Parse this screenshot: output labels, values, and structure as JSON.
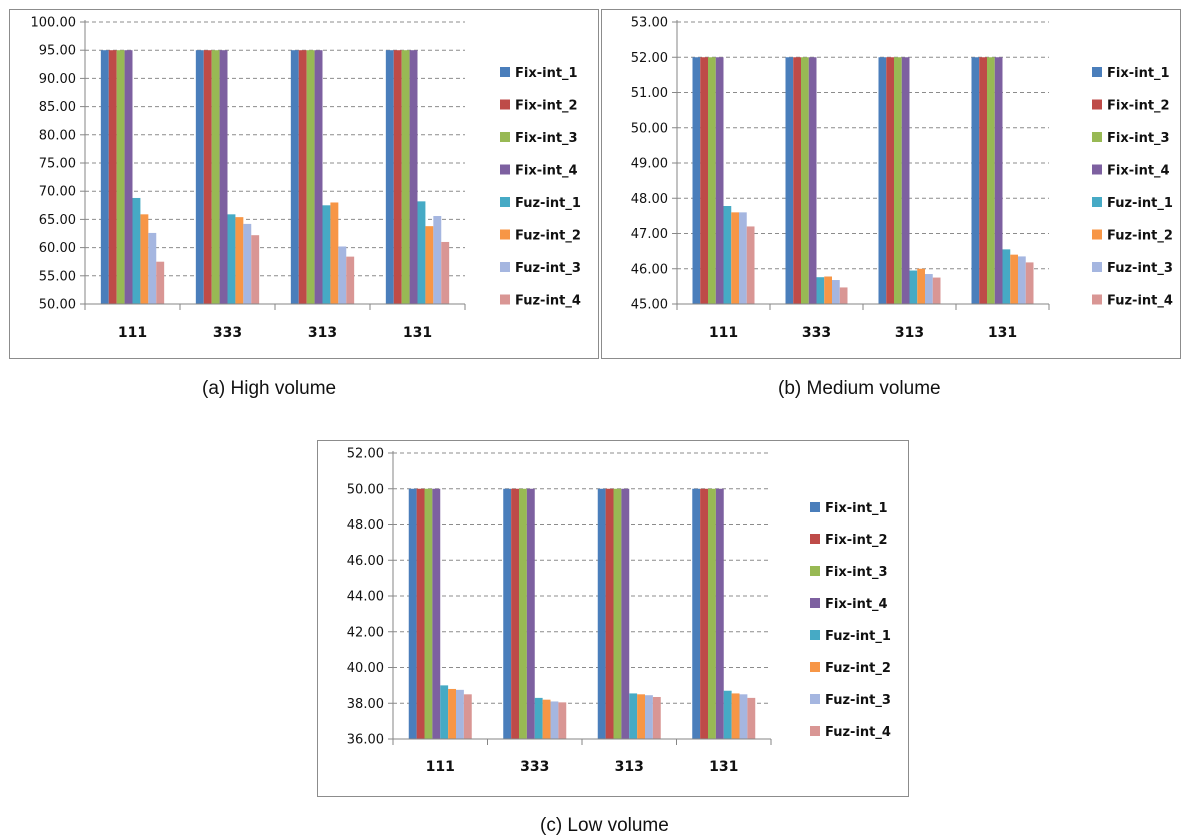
{
  "chart_data": [
    {
      "type": "bar",
      "caption": "(a) High volume",
      "categories": [
        "111",
        "333",
        "313",
        "131"
      ],
      "ylim": [
        50,
        100
      ],
      "yticks": [
        "50.00",
        "55.00",
        "60.00",
        "65.00",
        "70.00",
        "75.00",
        "80.00",
        "85.00",
        "90.00",
        "95.00",
        "100.00"
      ],
      "grid": true,
      "legend_position": "right",
      "series": [
        {
          "name": "Fix-int_1",
          "color": "#4a7ebb",
          "values": [
            95,
            95,
            95,
            95
          ]
        },
        {
          "name": "Fix-int_2",
          "color": "#be4b48",
          "values": [
            95,
            95,
            95,
            95
          ]
        },
        {
          "name": "Fix-int_3",
          "color": "#98b954",
          "values": [
            95,
            95,
            95,
            95
          ]
        },
        {
          "name": "Fix-int_4",
          "color": "#7d60a0",
          "values": [
            95,
            95,
            95,
            95
          ]
        },
        {
          "name": "Fuz-int_1",
          "color": "#46aac5",
          "values": [
            68.8,
            65.9,
            67.5,
            68.2
          ]
        },
        {
          "name": "Fuz-int_2",
          "color": "#f79646",
          "values": [
            65.9,
            65.4,
            68.0,
            63.8
          ]
        },
        {
          "name": "Fuz-int_3",
          "color": "#a5b6e0",
          "values": [
            62.6,
            64.2,
            60.2,
            65.6
          ]
        },
        {
          "name": "Fuz-int_4",
          "color": "#d99694",
          "values": [
            57.5,
            62.2,
            58.4,
            61.0
          ]
        }
      ]
    },
    {
      "type": "bar",
      "caption": "(b) Medium volume",
      "categories": [
        "111",
        "333",
        "313",
        "131"
      ],
      "ylim": [
        45,
        53
      ],
      "yticks": [
        "45.00",
        "46.00",
        "47.00",
        "48.00",
        "49.00",
        "50.00",
        "51.00",
        "52.00",
        "53.00"
      ],
      "grid": true,
      "legend_position": "right",
      "series": [
        {
          "name": "Fix-int_1",
          "color": "#4a7ebb",
          "values": [
            52,
            52,
            52,
            52
          ]
        },
        {
          "name": "Fix-int_2",
          "color": "#be4b48",
          "values": [
            52,
            52,
            52,
            52
          ]
        },
        {
          "name": "Fix-int_3",
          "color": "#98b954",
          "values": [
            52,
            52,
            52,
            52
          ]
        },
        {
          "name": "Fix-int_4",
          "color": "#7d60a0",
          "values": [
            52,
            52,
            52,
            52
          ]
        },
        {
          "name": "Fuz-int_1",
          "color": "#46aac5",
          "values": [
            47.78,
            45.76,
            45.95,
            46.55
          ]
        },
        {
          "name": "Fuz-int_2",
          "color": "#f79646",
          "values": [
            47.6,
            45.78,
            46.0,
            46.4
          ]
        },
        {
          "name": "Fuz-int_3",
          "color": "#a5b6e0",
          "values": [
            47.6,
            45.68,
            45.85,
            46.35
          ]
        },
        {
          "name": "Fuz-int_4",
          "color": "#d99694",
          "values": [
            47.2,
            45.47,
            45.75,
            46.18
          ]
        }
      ]
    },
    {
      "type": "bar",
      "caption": "(c) Low volume",
      "categories": [
        "111",
        "333",
        "313",
        "131"
      ],
      "ylim": [
        36,
        52
      ],
      "yticks": [
        "36.00",
        "38.00",
        "40.00",
        "42.00",
        "44.00",
        "46.00",
        "48.00",
        "50.00",
        "52.00"
      ],
      "grid": true,
      "legend_position": "right",
      "series": [
        {
          "name": "Fix-int_1",
          "color": "#4a7ebb",
          "values": [
            50,
            50,
            50,
            50
          ]
        },
        {
          "name": "Fix-int_2",
          "color": "#be4b48",
          "values": [
            50,
            50,
            50,
            50
          ]
        },
        {
          "name": "Fix-int_3",
          "color": "#98b954",
          "values": [
            50,
            50,
            50,
            50
          ]
        },
        {
          "name": "Fix-int_4",
          "color": "#7d60a0",
          "values": [
            50,
            50,
            50,
            50
          ]
        },
        {
          "name": "Fuz-int_1",
          "color": "#46aac5",
          "values": [
            39.0,
            38.3,
            38.55,
            38.7
          ]
        },
        {
          "name": "Fuz-int_2",
          "color": "#f79646",
          "values": [
            38.8,
            38.2,
            38.5,
            38.55
          ]
        },
        {
          "name": "Fuz-int_3",
          "color": "#a5b6e0",
          "values": [
            38.75,
            38.1,
            38.45,
            38.5
          ]
        },
        {
          "name": "Fuz-int_4",
          "color": "#d99694",
          "values": [
            38.5,
            38.05,
            38.35,
            38.3
          ]
        }
      ]
    }
  ]
}
